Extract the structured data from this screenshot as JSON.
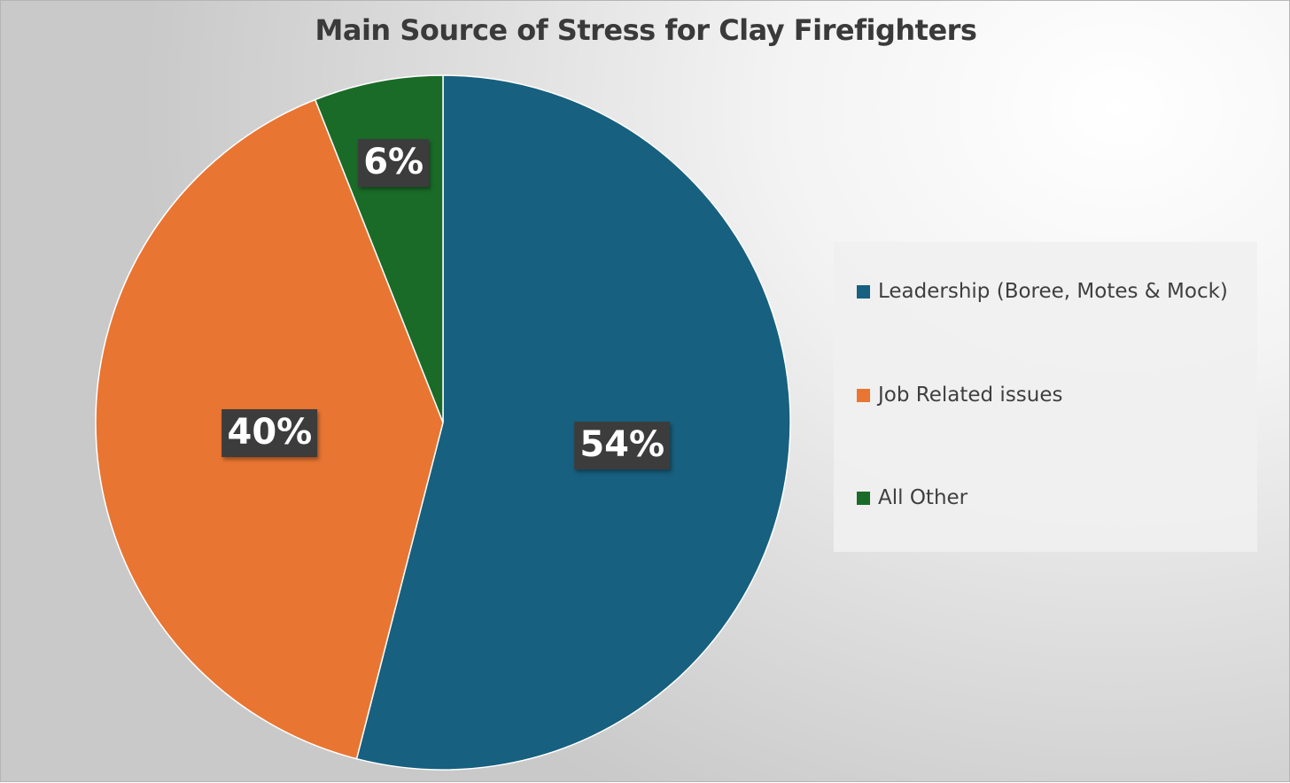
{
  "chart_data": {
    "type": "pie",
    "title": "Main Source of Stress for Clay Firefighters",
    "categories": [
      "Leadership (Boree, Motes & Mock)",
      "Job Related issues",
      "All Other"
    ],
    "values": [
      54,
      40,
      6
    ],
    "data_labels": [
      "54%",
      "40%",
      "6%"
    ],
    "colors": [
      "#17607f",
      "#e97532",
      "#1a6b28"
    ],
    "legend_placement": "right"
  }
}
